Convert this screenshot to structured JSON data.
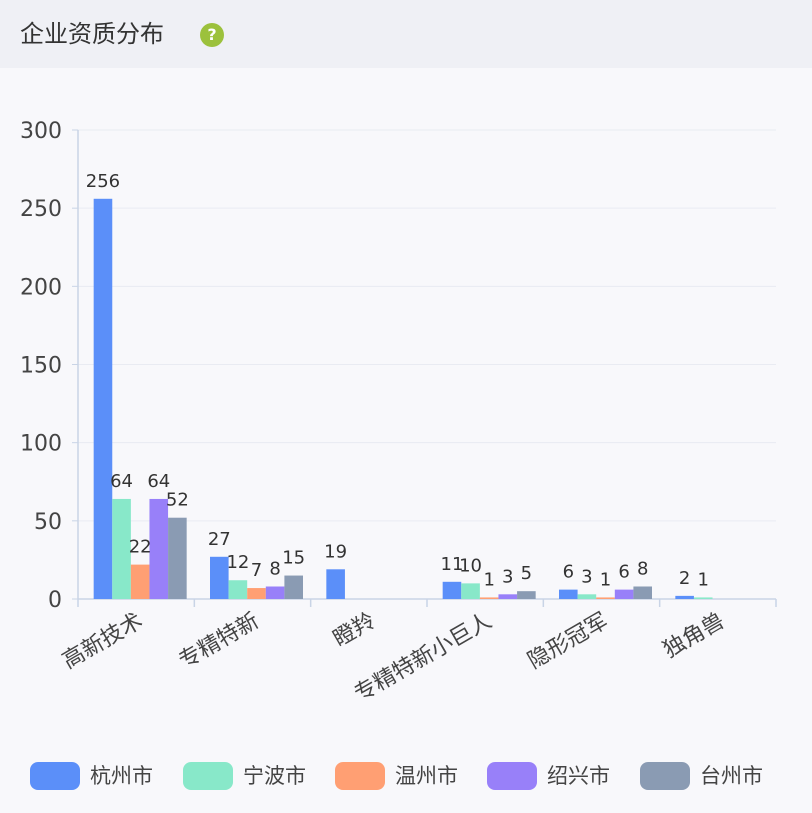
{
  "header": {
    "title": "企业资质分布",
    "help_icon": "question-circle-icon"
  },
  "chart_data": {
    "type": "bar",
    "categories": [
      "高新技术",
      "专精特新",
      "瞪羚",
      "专精特新小巨人",
      "隐形冠军",
      "独角兽"
    ],
    "ylim": [
      0,
      300
    ],
    "yticks": [
      0,
      50,
      100,
      150,
      200,
      250,
      300
    ],
    "grid": true,
    "legend_position": "bottom",
    "series": [
      {
        "name": "杭州市",
        "color": "#5b8ff9",
        "values": [
          256,
          27,
          19,
          11,
          6,
          2
        ],
        "labels": [
          "256",
          "27",
          "19",
          "11",
          "6",
          "2"
        ]
      },
      {
        "name": "宁波市",
        "color": "#88e8c9",
        "values": [
          64,
          12,
          0,
          10,
          3,
          1
        ],
        "labels": [
          "64",
          "12",
          "",
          "10",
          "3",
          "1"
        ]
      },
      {
        "name": "温州市",
        "color": "#ff9f73",
        "values": [
          22,
          7,
          0,
          1,
          1,
          0
        ],
        "labels": [
          "22",
          "7",
          "",
          "1",
          "1",
          ""
        ]
      },
      {
        "name": "绍兴市",
        "color": "#9880f9",
        "values": [
          64,
          8,
          0,
          3,
          6,
          0
        ],
        "labels": [
          "64",
          "8",
          "",
          "3",
          "6",
          ""
        ]
      },
      {
        "name": "台州市",
        "color": "#8a9bb3",
        "values": [
          52,
          15,
          0,
          5,
          8,
          0
        ],
        "labels": [
          "52",
          "15",
          "",
          "5",
          "8",
          ""
        ]
      }
    ]
  }
}
